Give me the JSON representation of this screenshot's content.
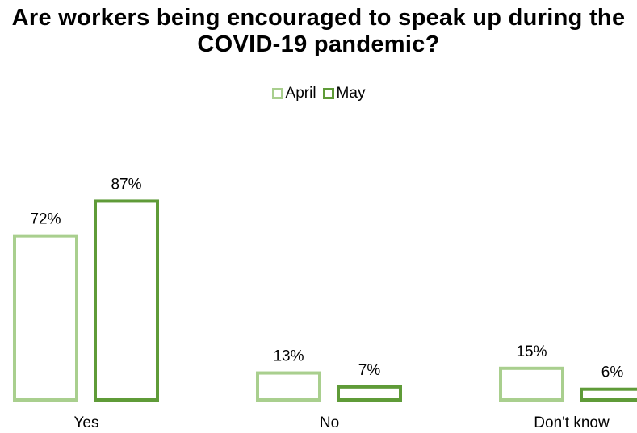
{
  "chart_data": {
    "type": "bar",
    "title": "Are workers being encouraged to speak up during the COVID-19 pandemic?",
    "categories": [
      "Yes",
      "No",
      "Don't know"
    ],
    "series": [
      {
        "name": "April",
        "values": [
          72,
          13,
          15
        ],
        "labels": [
          "72%",
          "13%",
          "15%"
        ],
        "color": "#a9cf8e"
      },
      {
        "name": "May",
        "values": [
          87,
          7,
          6
        ],
        "labels": [
          "87%",
          "7%",
          "6%"
        ],
        "color": "#5f9b38"
      }
    ],
    "ylim": [
      0,
      100
    ],
    "legend_position": "top",
    "grid": false
  }
}
